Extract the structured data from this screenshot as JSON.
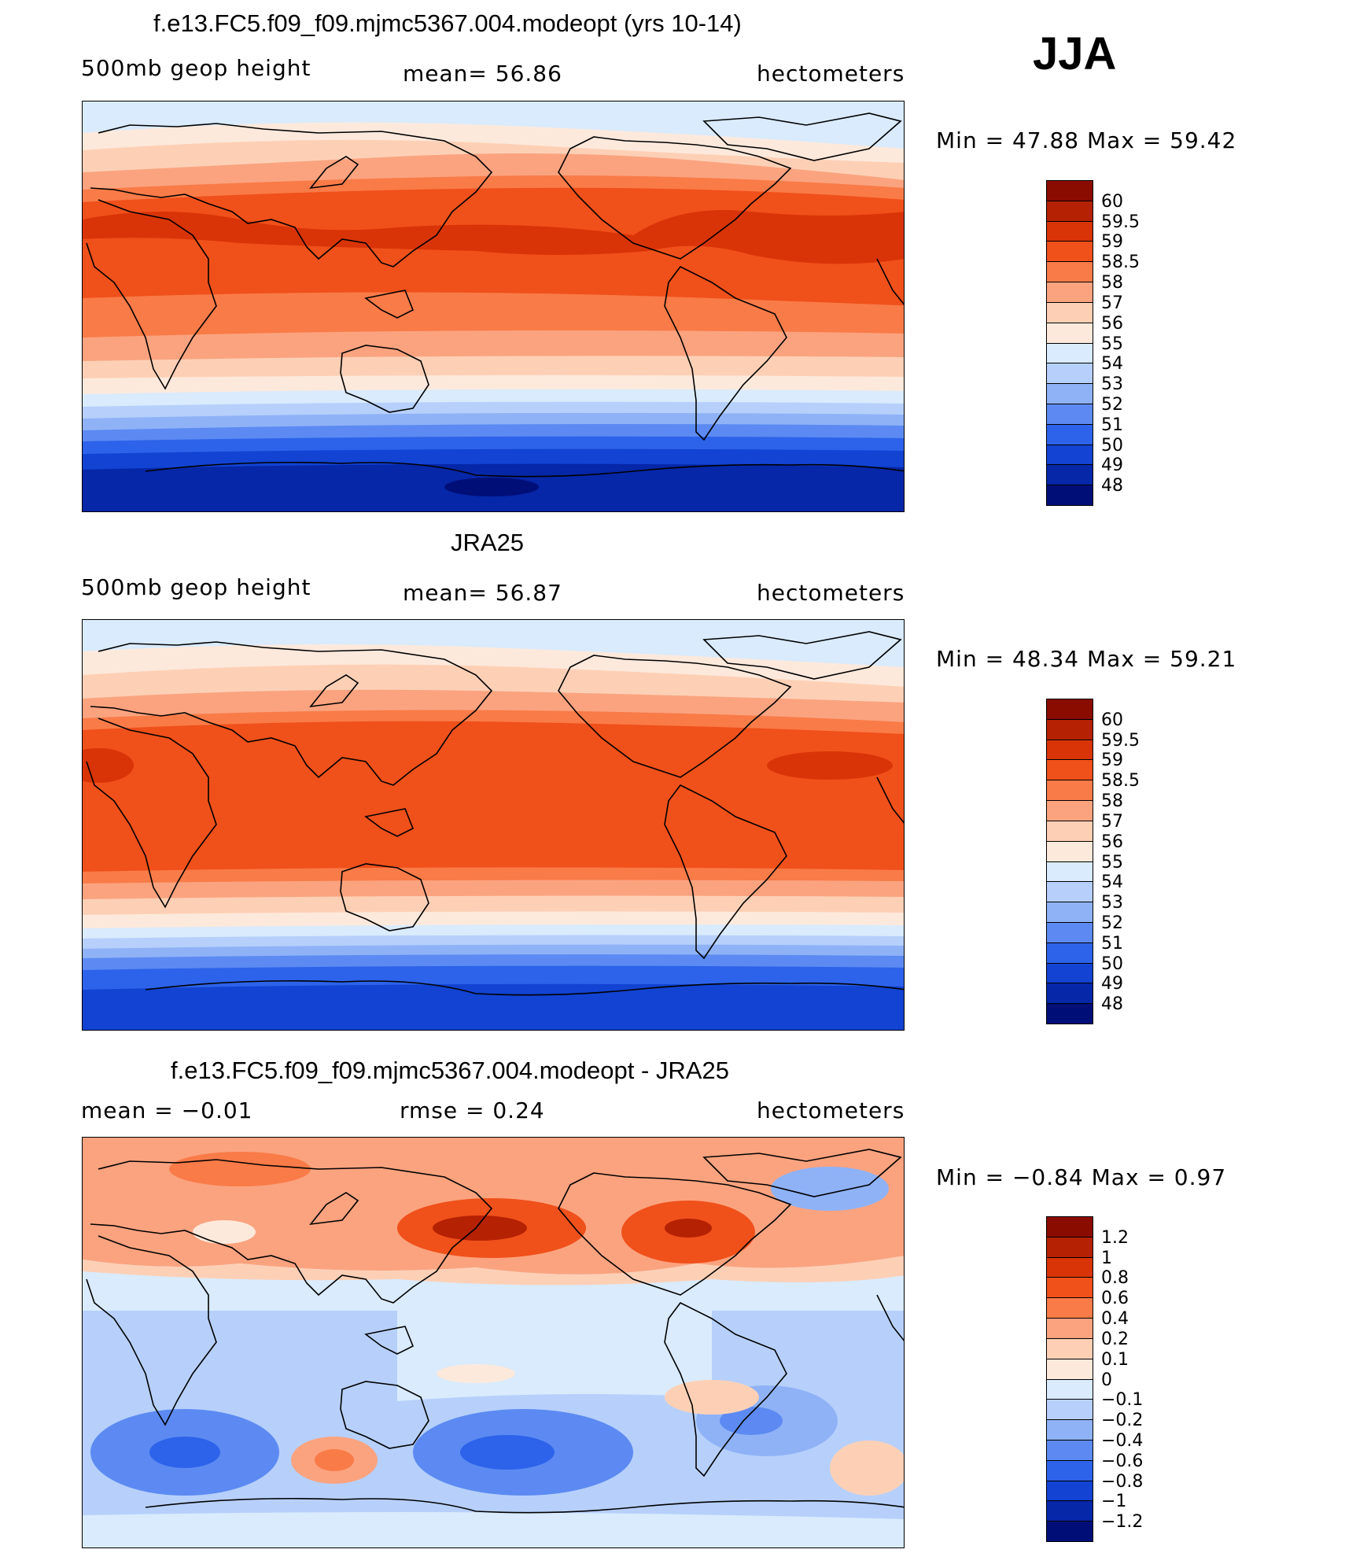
{
  "season": "JJA",
  "panels": [
    {
      "title": "f.e13.FC5.f09_f09.mjmc5367.004.modeopt (yrs 10-14)",
      "left_label": "500mb  geop  height",
      "center_label": "mean=   56.86",
      "right_label": "hectometers",
      "minmax": "Min  =    47.88  Max  =    59.42",
      "colorbar": {
        "labels": [
          "60",
          "59.5",
          "59",
          "58.5",
          "58",
          "57",
          "56",
          "55",
          "54",
          "53",
          "52",
          "51",
          "50",
          "49",
          "48"
        ],
        "colors": [
          "#8a0b00",
          "#b52103",
          "#d93407",
          "#f0501a",
          "#f97b48",
          "#fba37f",
          "#fdd0b6",
          "#fde9db",
          "#d9ebfd",
          "#b6d0fb",
          "#8fb2f7",
          "#5c8af2",
          "#2d63ea",
          "#1243d2",
          "#0527a8",
          "#000f78"
        ]
      },
      "map_colors": {
        "polar_n": "#d9ebfd",
        "band1": "#fde9db",
        "band2": "#fdd0b6",
        "band3": "#fba37f",
        "band4": "#f97b48",
        "band5": "#f0501a",
        "band6": "#d93407",
        "s1": "#fde9db",
        "s2": "#d9ebfd",
        "s3": "#b6d0fb",
        "s4": "#8fb2f7",
        "s5": "#5c8af2",
        "s6": "#2d63ea",
        "s7": "#1243d2",
        "s8": "#0527a8",
        "s9": "#000f78"
      }
    },
    {
      "title": "JRA25",
      "left_label": "500mb  geop  height",
      "center_label": "mean=   56.87",
      "right_label": "hectometers",
      "minmax": "Min  =    48.34  Max  =    59.21",
      "colorbar": {
        "labels": [
          "60",
          "59.5",
          "59",
          "58.5",
          "58",
          "57",
          "56",
          "55",
          "54",
          "53",
          "52",
          "51",
          "50",
          "49",
          "48"
        ],
        "colors": [
          "#8a0b00",
          "#b52103",
          "#d93407",
          "#f0501a",
          "#f97b48",
          "#fba37f",
          "#fdd0b6",
          "#fde9db",
          "#d9ebfd",
          "#b6d0fb",
          "#8fb2f7",
          "#5c8af2",
          "#2d63ea",
          "#1243d2",
          "#0527a8",
          "#000f78"
        ]
      }
    },
    {
      "title": "f.e13.FC5.f09_f09.mjmc5367.004.modeopt - JRA25",
      "left_label": "mean  =    −0.01",
      "center_label": "rmse  =     0.24",
      "right_label": "hectometers",
      "minmax": "Min  =    −0.84  Max  =      0.97",
      "colorbar": {
        "labels": [
          "1.2",
          "1",
          "0.8",
          "0.6",
          "0.4",
          "0.2",
          "0.1",
          "0",
          "−0.1",
          "−0.2",
          "−0.4",
          "−0.6",
          "−0.8",
          "−1",
          "−1.2"
        ],
        "colors": [
          "#8a0b00",
          "#b52103",
          "#d93407",
          "#f0501a",
          "#f97b48",
          "#fba37f",
          "#fdd0b6",
          "#fde9db",
          "#d9ebfd",
          "#b6d0fb",
          "#8fb2f7",
          "#5c8af2",
          "#2d63ea",
          "#1243d2",
          "#0527a8",
          "#000f78"
        ]
      }
    }
  ]
}
